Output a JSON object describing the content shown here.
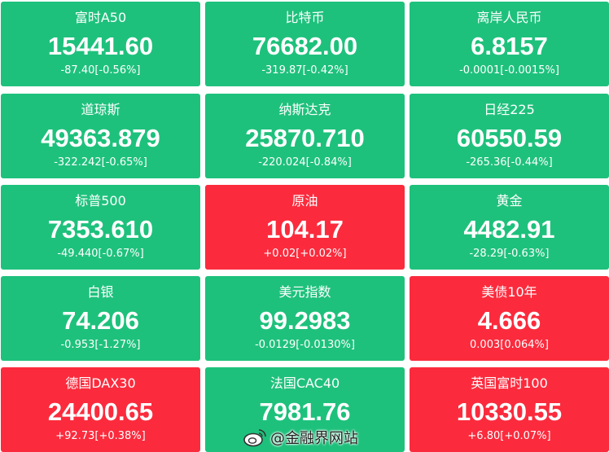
{
  "tiles": [
    {
      "name": "富时A50",
      "price": "15441.60",
      "change": "-87.40[-0.56%]",
      "color": "#1ec17c"
    },
    {
      "name": "比特币",
      "price": "76682.00",
      "change": "-319.87[-0.42%]",
      "color": "#1ec17c"
    },
    {
      "name": "离岸人民币",
      "price": "6.8157",
      "change": "-0.0001[-0.0015%]",
      "color": "#1ec17c"
    },
    {
      "name": "道琼斯",
      "price": "49363.879",
      "change": "-322.242[-0.65%]",
      "color": "#1ec17c"
    },
    {
      "name": "纳斯达克",
      "price": "25870.710",
      "change": "-220.024[-0.84%]",
      "color": "#1ec17c"
    },
    {
      "name": "日经225",
      "price": "60550.59",
      "change": "-265.36[-0.44%]",
      "color": "#1ec17c"
    },
    {
      "name": "标普500",
      "price": "7353.610",
      "change": "-49.440[-0.67%]",
      "color": "#1ec17c"
    },
    {
      "name": "原油",
      "price": "104.17",
      "change": "+0.02[+0.02%]",
      "color": "#fb2b3d"
    },
    {
      "name": "黄金",
      "price": "4482.91",
      "change": "-28.29[-0.63%]",
      "color": "#1ec17c"
    },
    {
      "name": "白银",
      "price": "74.206",
      "change": "-0.953[-1.27%]",
      "color": "#1ec17c"
    },
    {
      "name": "美元指数",
      "price": "99.2983",
      "change": "-0.0129[-0.0130%]",
      "color": "#1ec17c"
    },
    {
      "name": "美债10年",
      "price": "4.666",
      "change": "0.003[0.064%]",
      "color": "#fb2b3d"
    },
    {
      "name": "德国DAX30",
      "price": "24400.65",
      "change": "+92.73[+0.38%]",
      "color": "#fb2b3d"
    },
    {
      "name": "法国CAC40",
      "price": "7981.76",
      "change": "",
      "color": "#1ec17c"
    },
    {
      "name": "英国富时100",
      "price": "10330.55",
      "change": "+6.80[+0.07%]",
      "color": "#fb2b3d"
    }
  ],
  "watermark": "@金融界网站"
}
